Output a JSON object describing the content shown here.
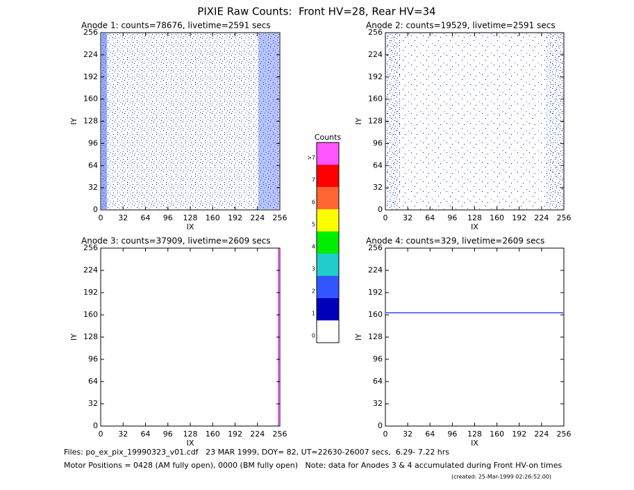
{
  "header": {
    "title": "PIXIE Raw Counts:  Front HV=28, Rear HV=34"
  },
  "chart_data": [
    {
      "type": "image",
      "title": "Anode 1: counts=78676, livetime=2591 secs",
      "xlabel": "IX",
      "ylabel": "IY",
      "xlim": [
        0,
        256
      ],
      "ylim": [
        0,
        256
      ],
      "xticks": [
        0,
        32,
        64,
        96,
        128,
        160,
        192,
        224,
        256
      ],
      "yticks": [
        0,
        32,
        64,
        96,
        128,
        160,
        192,
        224,
        256
      ]
    },
    {
      "type": "image",
      "title": "Anode 2: counts=19529, livetime=2591 secs",
      "xlabel": "IX",
      "ylabel": "IY",
      "xlim": [
        0,
        256
      ],
      "ylim": [
        0,
        256
      ],
      "xticks": [
        0,
        32,
        64,
        96,
        128,
        160,
        192,
        224,
        256
      ],
      "yticks": [
        0,
        32,
        64,
        96,
        128,
        160,
        192,
        224,
        256
      ]
    },
    {
      "type": "image",
      "title": "Anode 3: counts=37909, livetime=2609 secs",
      "xlabel": "IX",
      "ylabel": "IY",
      "xlim": [
        0,
        256
      ],
      "ylim": [
        0,
        256
      ],
      "xticks": [
        0,
        32,
        64,
        96,
        128,
        160,
        192,
        224,
        256
      ],
      "yticks": [
        0,
        32,
        64,
        96,
        128,
        160,
        192,
        224,
        256
      ]
    },
    {
      "type": "image",
      "title": "Anode 4: counts=329, livetime=2609 secs",
      "xlabel": "IX",
      "ylabel": "IY",
      "xlim": [
        0,
        256
      ],
      "ylim": [
        0,
        256
      ],
      "xticks": [
        0,
        32,
        64,
        96,
        128,
        160,
        192,
        224,
        256
      ],
      "yticks": [
        0,
        32,
        64,
        96,
        128,
        160,
        192,
        224,
        256
      ]
    }
  ],
  "colorbar": {
    "title": "Counts",
    "bins": [
      {
        "label": "0",
        "color": "#ffffff"
      },
      {
        "label": "1",
        "color": "#0000bb"
      },
      {
        "label": "2",
        "color": "#3355ff"
      },
      {
        "label": "3",
        "color": "#22cccc"
      },
      {
        "label": "4",
        "color": "#00ee00"
      },
      {
        "label": "5",
        "color": "#ffff00"
      },
      {
        "label": "6",
        "color": "#ff6633"
      },
      {
        "label": "7",
        "color": "#ff0000"
      },
      {
        "label": ">7",
        "color": "#ff55ff"
      }
    ]
  },
  "footer": {
    "line1": "Files: po_ex_pix_19990323_v01.cdf   23 MAR 1999, DOY= 82, UT=22630-26007 secs,  6.29- 7.22 hrs",
    "line2": "Motor Positions = 0428 (AM fully open), 0000 (BM fully open)   Note: data for Anodes 3 & 4 accumulated during Front HV-on times",
    "created": "(created: 25-Mar-1999 02:26:52.00)"
  }
}
